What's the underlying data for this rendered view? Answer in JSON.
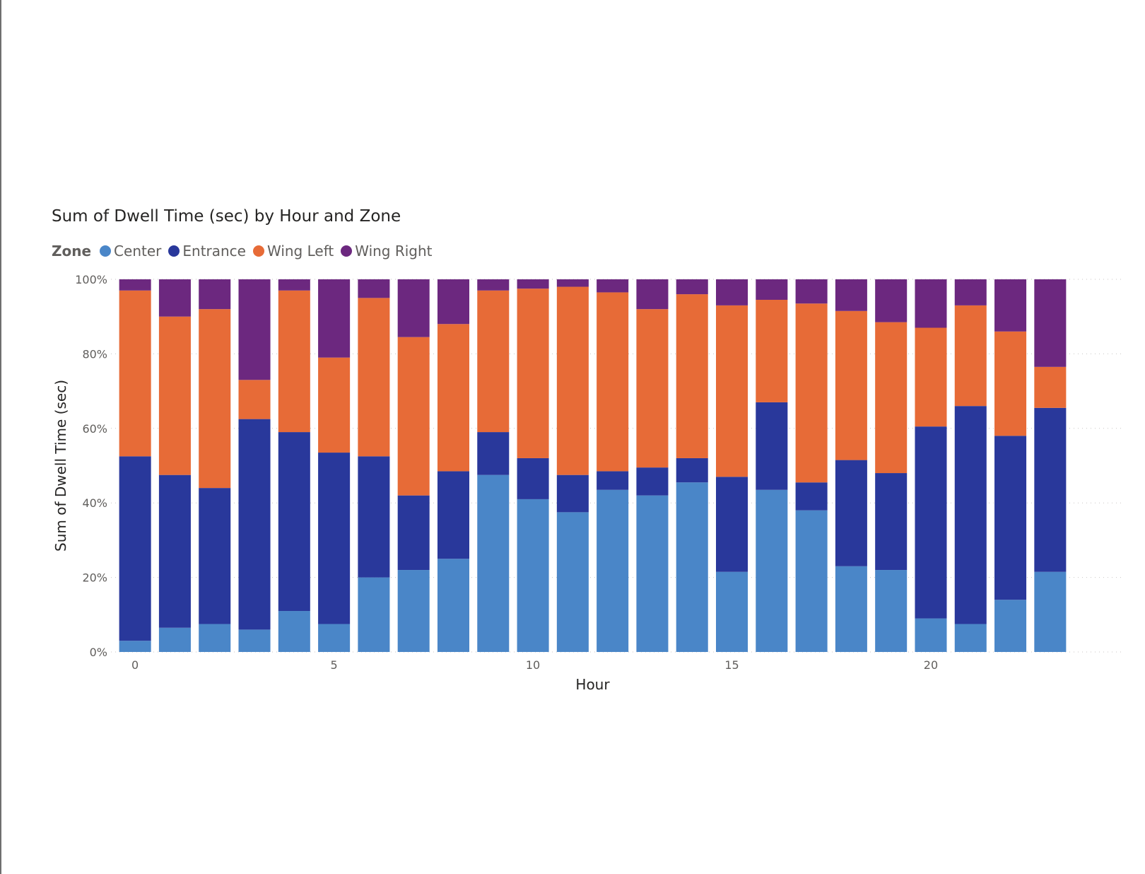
{
  "chart_data": {
    "type": "bar",
    "stacking": "percent",
    "title": "Sum of Dwell Time (sec) by Hour and Zone",
    "legend_title": "Zone",
    "legend_placement": "top-left",
    "xlabel": "Hour",
    "ylabel": "Sum of Dwell Time (sec)",
    "ylim": [
      0,
      100
    ],
    "y_ticks": [
      "0%",
      "20%",
      "40%",
      "60%",
      "80%",
      "100%"
    ],
    "x_ticks": [
      "0",
      "5",
      "10",
      "15",
      "20"
    ],
    "x": [
      0,
      1,
      2,
      3,
      4,
      5,
      6,
      7,
      8,
      9,
      10,
      11,
      12,
      13,
      14,
      15,
      16,
      17,
      18,
      19,
      20,
      21,
      22,
      23
    ],
    "grid": "horizontal-dotted",
    "series": [
      {
        "name": "Center",
        "color": "#4a86c8",
        "values": [
          3,
          6.5,
          7.5,
          6,
          11,
          7.5,
          20,
          22,
          25,
          47.5,
          41,
          37.5,
          43.5,
          42,
          45.5,
          21.5,
          43.5,
          38,
          23,
          22,
          9,
          7.5,
          14,
          21.5
        ]
      },
      {
        "name": "Entrance",
        "color": "#29389b",
        "values": [
          49.5,
          41,
          36.5,
          56.5,
          48,
          46,
          32.5,
          20,
          23.5,
          11.5,
          11,
          10,
          5,
          7.5,
          6.5,
          25.5,
          23.5,
          7.5,
          28.5,
          26,
          51.5,
          58.5,
          44,
          44
        ]
      },
      {
        "name": "Wing Left",
        "color": "#e76b37",
        "values": [
          44.5,
          42.5,
          48,
          10.5,
          38,
          25.5,
          42.5,
          42.5,
          39.5,
          38,
          45.5,
          50.5,
          48,
          42.5,
          44,
          46,
          27.5,
          48,
          40,
          40.5,
          26.5,
          27,
          28,
          11
        ]
      },
      {
        "name": "Wing Right",
        "color": "#6c287f",
        "values": [
          3,
          10,
          8,
          27,
          3,
          21,
          5,
          15.5,
          12,
          3,
          2.5,
          2,
          3.5,
          8,
          4,
          7,
          5.5,
          6.5,
          8.5,
          11.5,
          13,
          7,
          14,
          23.5
        ]
      }
    ]
  }
}
